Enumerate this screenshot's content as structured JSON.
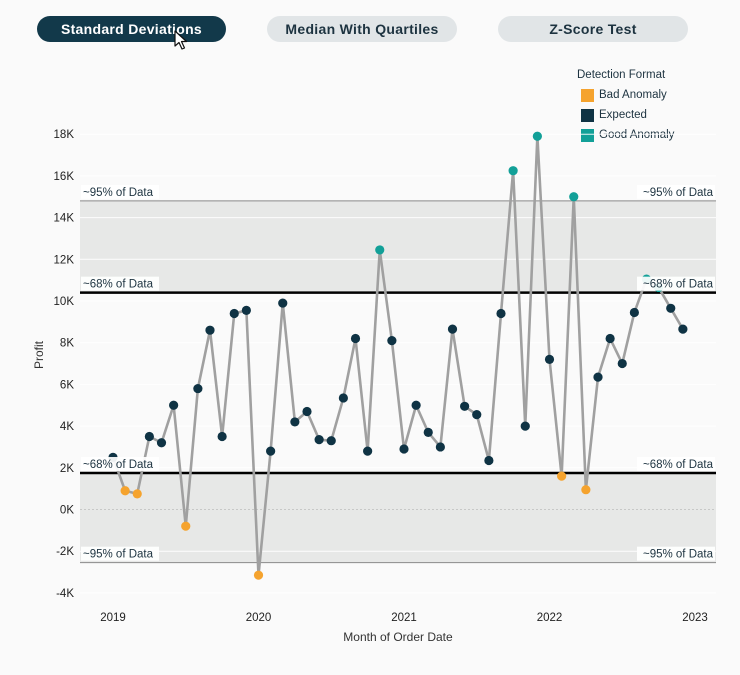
{
  "tabs": [
    {
      "label": "Standard Deviations",
      "active": true
    },
    {
      "label": "Median With Quartiles",
      "active": false
    },
    {
      "label": "Z-Score Test",
      "active": false
    }
  ],
  "legend": {
    "title": "Detection Format",
    "items": [
      {
        "key": "bad",
        "label": "Bad Anomaly",
        "color": "#f5a32e"
      },
      {
        "key": "expected",
        "label": "Expected",
        "color": "#0f3344"
      },
      {
        "key": "good",
        "label": "Good Anomaly",
        "color": "#12a098"
      }
    ]
  },
  "colors": {
    "line": "#a0a0a0",
    "band": "#e7e8e7",
    "accent": "#12394a"
  },
  "chart_data": {
    "type": "line",
    "xlabel": "Month of Order Date",
    "ylabel": "Profit",
    "x_ticks": [
      "2019",
      "2020",
      "2021",
      "2022",
      "2023"
    ],
    "y_ticks": [
      {
        "value": -4000,
        "label": "-4K"
      },
      {
        "value": -2000,
        "label": "-2K"
      },
      {
        "value": 0,
        "label": "0K"
      },
      {
        "value": 2000,
        "label": "2K"
      },
      {
        "value": 4000,
        "label": "4K"
      },
      {
        "value": 6000,
        "label": "6K"
      },
      {
        "value": 8000,
        "label": "8K"
      },
      {
        "value": 10000,
        "label": "10K"
      },
      {
        "value": 12000,
        "label": "12K"
      },
      {
        "value": 14000,
        "label": "14K"
      },
      {
        "value": 16000,
        "label": "16K"
      },
      {
        "value": 18000,
        "label": "18K"
      }
    ],
    "ylim": [
      -4000,
      18500
    ],
    "x_start_year": 2019,
    "x_end_year": 2023,
    "reference_lines": [
      {
        "value": 14800,
        "label": "~95% of Data",
        "style": "thin"
      },
      {
        "value": 10400,
        "label": "~68% of Data",
        "style": "thick"
      },
      {
        "value": 1750,
        "label": "~68% of Data",
        "style": "thick"
      },
      {
        "value": -2550,
        "label": "~95% of Data",
        "style": "thin"
      }
    ],
    "series": [
      {
        "name": "Profit",
        "points": [
          {
            "month": "2019-01",
            "value": 2500,
            "category": "expected"
          },
          {
            "month": "2019-02",
            "value": 900,
            "category": "bad"
          },
          {
            "month": "2019-03",
            "value": 750,
            "category": "bad"
          },
          {
            "month": "2019-04",
            "value": 3500,
            "category": "expected"
          },
          {
            "month": "2019-05",
            "value": 3200,
            "category": "expected"
          },
          {
            "month": "2019-06",
            "value": 5000,
            "category": "expected"
          },
          {
            "month": "2019-07",
            "value": -800,
            "category": "bad"
          },
          {
            "month": "2019-08",
            "value": 5800,
            "category": "expected"
          },
          {
            "month": "2019-09",
            "value": 8600,
            "category": "expected"
          },
          {
            "month": "2019-10",
            "value": 3500,
            "category": "expected"
          },
          {
            "month": "2019-11",
            "value": 9400,
            "category": "expected"
          },
          {
            "month": "2019-12",
            "value": 9550,
            "category": "expected"
          },
          {
            "month": "2020-01",
            "value": -3150,
            "category": "bad"
          },
          {
            "month": "2020-02",
            "value": 2800,
            "category": "expected"
          },
          {
            "month": "2020-03",
            "value": 9900,
            "category": "expected"
          },
          {
            "month": "2020-04",
            "value": 4200,
            "category": "expected"
          },
          {
            "month": "2020-05",
            "value": 4700,
            "category": "expected"
          },
          {
            "month": "2020-06",
            "value": 3350,
            "category": "expected"
          },
          {
            "month": "2020-07",
            "value": 3300,
            "category": "expected"
          },
          {
            "month": "2020-08",
            "value": 5350,
            "category": "expected"
          },
          {
            "month": "2020-09",
            "value": 8200,
            "category": "expected"
          },
          {
            "month": "2020-10",
            "value": 2800,
            "category": "expected"
          },
          {
            "month": "2020-11",
            "value": 12450,
            "category": "good"
          },
          {
            "month": "2020-12",
            "value": 8100,
            "category": "expected"
          },
          {
            "month": "2021-01",
            "value": 2900,
            "category": "expected"
          },
          {
            "month": "2021-02",
            "value": 5000,
            "category": "expected"
          },
          {
            "month": "2021-03",
            "value": 3700,
            "category": "expected"
          },
          {
            "month": "2021-04",
            "value": 3000,
            "category": "expected"
          },
          {
            "month": "2021-05",
            "value": 8650,
            "category": "expected"
          },
          {
            "month": "2021-06",
            "value": 4950,
            "category": "expected"
          },
          {
            "month": "2021-07",
            "value": 4550,
            "category": "expected"
          },
          {
            "month": "2021-08",
            "value": 2350,
            "category": "expected"
          },
          {
            "month": "2021-09",
            "value": 9400,
            "category": "expected"
          },
          {
            "month": "2021-10",
            "value": 16250,
            "category": "good"
          },
          {
            "month": "2021-11",
            "value": 4000,
            "category": "expected"
          },
          {
            "month": "2021-12",
            "value": 17900,
            "category": "good"
          },
          {
            "month": "2022-01",
            "value": 7200,
            "category": "expected"
          },
          {
            "month": "2022-02",
            "value": 1600,
            "category": "bad"
          },
          {
            "month": "2022-03",
            "value": 15000,
            "category": "good"
          },
          {
            "month": "2022-04",
            "value": 950,
            "category": "bad"
          },
          {
            "month": "2022-05",
            "value": 6350,
            "category": "expected"
          },
          {
            "month": "2022-06",
            "value": 8200,
            "category": "expected"
          },
          {
            "month": "2022-07",
            "value": 7000,
            "category": "expected"
          },
          {
            "month": "2022-08",
            "value": 9450,
            "category": "expected"
          },
          {
            "month": "2022-09",
            "value": 11050,
            "category": "good"
          },
          {
            "month": "2022-10",
            "value": 10650,
            "category": "good"
          },
          {
            "month": "2022-11",
            "value": 9650,
            "category": "expected"
          },
          {
            "month": "2022-12",
            "value": 8650,
            "category": "expected"
          }
        ]
      }
    ]
  }
}
